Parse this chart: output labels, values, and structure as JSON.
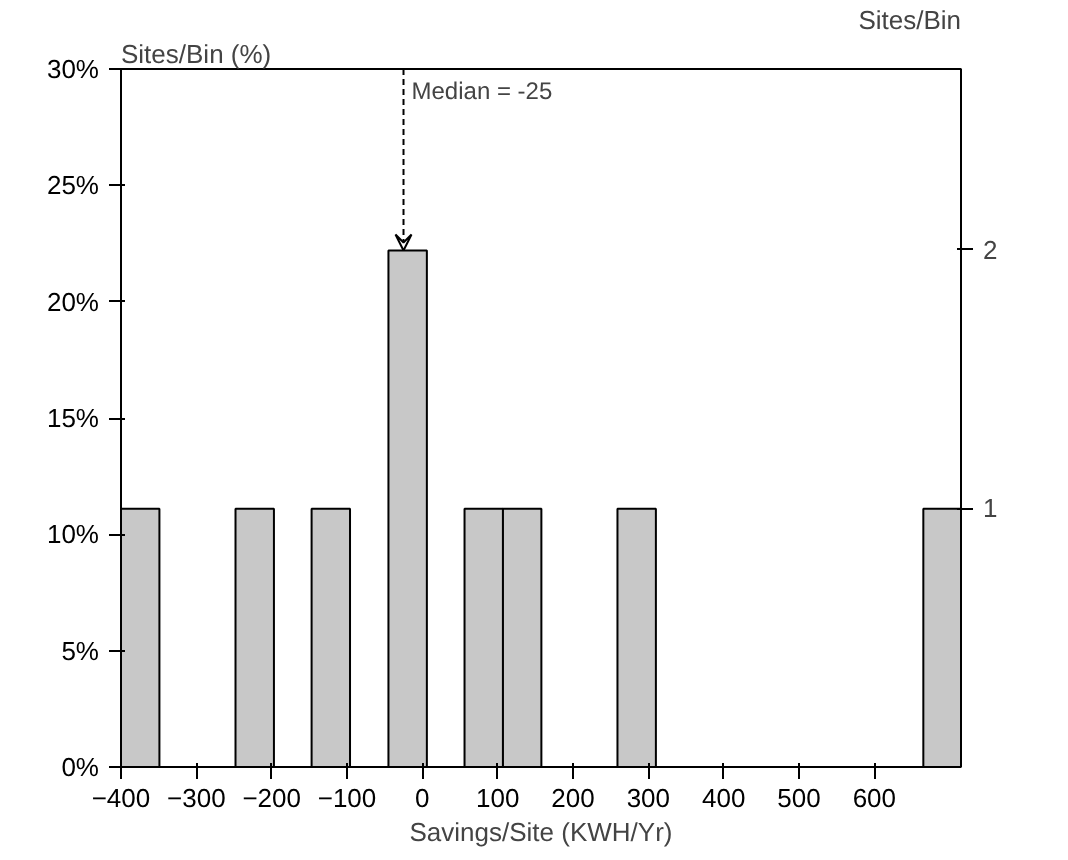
{
  "chart_data": {
    "type": "histogram",
    "xlabel": "Savings/Site (KWH/Yr)",
    "ylabel": "Sites/Bin (%)",
    "y2label": "Sites/Bin",
    "bins": [
      -400,
      -349,
      -248,
      -197,
      -147,
      -96,
      -45,
      6,
      56,
      107,
      158,
      259,
      310,
      665,
      715
    ],
    "values": [
      11.1,
      0,
      11.1,
      0,
      11.1,
      0,
      22.2,
      0,
      11.1,
      11.1,
      0,
      11.1,
      0,
      11.1
    ],
    "color": "#c8c8c8",
    "xlim": [
      -400,
      715
    ],
    "xticks": [
      -400,
      -300,
      -200,
      -100,
      0,
      100,
      200,
      300,
      400,
      500,
      600
    ],
    "ylim": [
      0,
      30
    ],
    "yticks": [
      {
        "value": 0,
        "label": "0%"
      },
      {
        "value": 5,
        "label": "5%"
      },
      {
        "value": 10,
        "label": "10%"
      },
      {
        "value": 15,
        "label": "15%"
      },
      {
        "value": 20,
        "label": "20%"
      },
      {
        "value": 25,
        "label": "25%"
      },
      {
        "value": 30,
        "label": "30%"
      }
    ],
    "y2lim": [
      0,
      2.7
    ],
    "y2ticks": [
      1,
      2
    ],
    "annotations": [
      {
        "text": "Median = -25",
        "x": -25,
        "y": 22.2
      }
    ],
    "grid": false
  }
}
